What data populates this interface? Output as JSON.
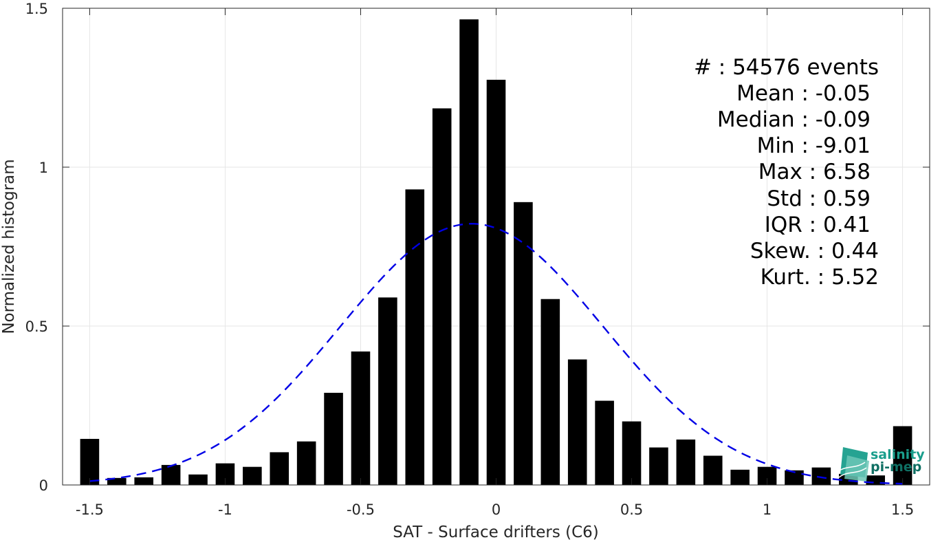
{
  "chart_data": {
    "type": "bar",
    "xlabel": "SAT - Surface drifters (C6)",
    "ylabel": "Normalized histogram",
    "xlim": [
      -1.6,
      1.6
    ],
    "ylim": [
      0,
      1.5
    ],
    "x_ticks": [
      -1.5,
      -1,
      -0.5,
      0,
      0.5,
      1,
      1.5
    ],
    "x_tick_labels": [
      "-1.5",
      "-1",
      "-0.5",
      "0",
      "0.5",
      "1",
      "1.5"
    ],
    "y_ticks": [
      0,
      0.5,
      1,
      1.5
    ],
    "y_tick_labels": [
      "0",
      "0.5",
      "1",
      "1.5"
    ],
    "grid": true,
    "bar_color": "#000000",
    "bars": {
      "x": [
        -1.5,
        -1.4,
        -1.3,
        -1.2,
        -1.1,
        -1.0,
        -0.9,
        -0.8,
        -0.7,
        -0.6,
        -0.5,
        -0.4,
        -0.3,
        -0.2,
        -0.1,
        0.0,
        0.1,
        0.2,
        0.3,
        0.4,
        0.5,
        0.6,
        0.7,
        0.8,
        0.9,
        1.0,
        1.1,
        1.2,
        1.3,
        1.4,
        1.5
      ],
      "values": [
        0.145,
        0.022,
        0.024,
        0.063,
        0.033,
        0.068,
        0.057,
        0.103,
        0.137,
        0.29,
        0.42,
        0.59,
        0.93,
        1.185,
        1.465,
        1.275,
        0.89,
        0.585,
        0.395,
        0.265,
        0.2,
        0.118,
        0.143,
        0.092,
        0.048,
        0.057,
        0.046,
        0.055,
        0.035,
        0.03,
        0.185
      ]
    },
    "fit": {
      "name": "",
      "type": "gaussian",
      "mean": -0.09,
      "std": 0.485,
      "peak": 0.822,
      "color": "#0000e6",
      "style": "dashed"
    },
    "annotations": [
      "#  : 54576 events",
      "Mean : -0.05",
      "Median : -0.09",
      "Min : -9.01",
      "Max : 6.58",
      "Std : 0.59",
      "IQR : 0.41",
      "Skew. : 0.44",
      "Kurt. : 5.52"
    ]
  },
  "logo": {
    "line1": "salinity",
    "line2": "pi-mep",
    "color": "#1a9e8c"
  }
}
